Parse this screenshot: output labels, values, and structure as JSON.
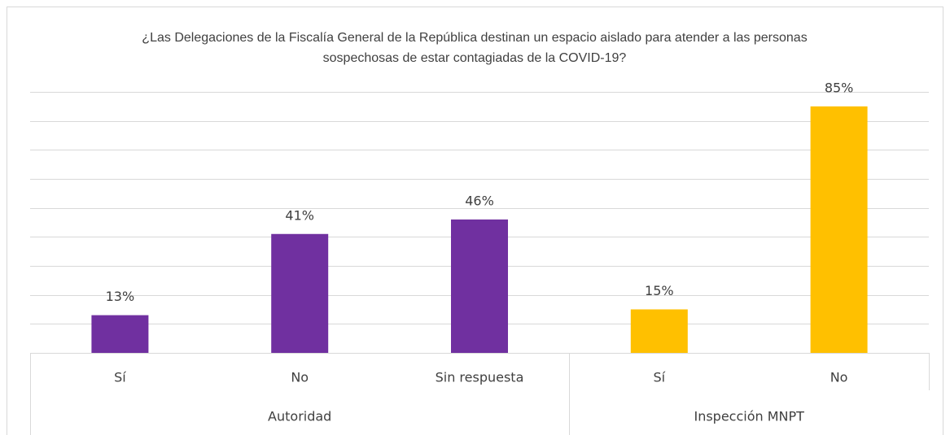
{
  "chart_data": {
    "type": "bar",
    "title": "¿Las Delegaciones de la Fiscalía General de la República destinan un espacio aislado para atender a las personas sospechosas de estar contagiadas de la COVID-19?",
    "series": [
      {
        "name": "Autoridad",
        "color": "#7030a0",
        "categories": [
          "Sí",
          "No",
          "Sin respuesta"
        ],
        "values": [
          13,
          41,
          46
        ],
        "value_labels": [
          "13%",
          "41%",
          "46%"
        ]
      },
      {
        "name": "Inspección MNPT",
        "color": "#ffc000",
        "categories": [
          "Sí",
          "No"
        ],
        "values": [
          15,
          85
        ],
        "value_labels": [
          "15%",
          "85%"
        ]
      }
    ],
    "ylim": [
      0,
      90
    ],
    "yticks": [
      0,
      10,
      20,
      30,
      40,
      50,
      60,
      70,
      80,
      90
    ],
    "grid": true
  }
}
